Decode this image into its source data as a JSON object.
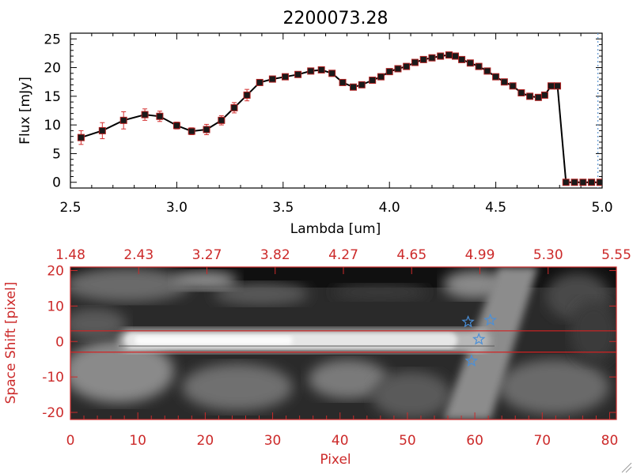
{
  "colors": {
    "axis_top": "#000000",
    "axis_bottom": "#cc2a2a",
    "error_bar": "#d43030",
    "marker_fill": "#1a1a1a",
    "marker_edge": "#b02020",
    "star": "#4a8fd8",
    "dotted_line": "#6aa0d8",
    "extract_line": "#d42222"
  },
  "chart_data": [
    {
      "type": "line",
      "title": "2200073.28",
      "xlabel": "Lambda [um]",
      "ylabel": "Flux [mJy]",
      "xlim": [
        2.5,
        5.0
      ],
      "ylim": [
        -1,
        26
      ],
      "x_ticks": [
        2.5,
        3.0,
        3.5,
        4.0,
        4.5,
        5.0
      ],
      "x_tick_labels": [
        "2.5",
        "3.0",
        "3.5",
        "4.0",
        "4.5",
        "5.0"
      ],
      "y_ticks": [
        0,
        5,
        10,
        15,
        20,
        25
      ],
      "y_tick_labels": [
        "0",
        "5",
        "10",
        "15",
        "20",
        "25"
      ],
      "series": [
        {
          "x": [
            2.55,
            2.65,
            2.75,
            2.85,
            2.92,
            3.0,
            3.07,
            3.14,
            3.21,
            3.27,
            3.33,
            3.39,
            3.45,
            3.51,
            3.57,
            3.63,
            3.68,
            3.73,
            3.78,
            3.83,
            3.87,
            3.92,
            3.96,
            4.0,
            4.04,
            4.08,
            4.12,
            4.16,
            4.2,
            4.24,
            4.28,
            4.31,
            4.34,
            4.38,
            4.42,
            4.46,
            4.5,
            4.54,
            4.58,
            4.62,
            4.66,
            4.7,
            4.73,
            4.76,
            4.79,
            4.83,
            4.87,
            4.91,
            4.95,
            4.99
          ],
          "y": [
            7.8,
            9.0,
            10.8,
            11.8,
            11.5,
            9.9,
            8.9,
            9.2,
            10.8,
            13.0,
            15.2,
            17.4,
            18.0,
            18.4,
            18.8,
            19.4,
            19.6,
            19.0,
            17.4,
            16.6,
            17.0,
            17.8,
            18.4,
            19.3,
            19.8,
            20.2,
            20.9,
            21.4,
            21.7,
            22.0,
            22.2,
            22.0,
            21.4,
            20.8,
            20.2,
            19.4,
            18.4,
            17.5,
            16.8,
            15.6,
            15.0,
            14.8,
            15.2,
            16.8,
            16.8,
            0.0,
            0.0,
            0.0,
            0.0,
            0.0
          ],
          "yerr": [
            1.2,
            1.4,
            1.5,
            1.0,
            0.9,
            0.6,
            0.6,
            0.9,
            0.8,
            0.9,
            1.0,
            0.5,
            0.4,
            0.4,
            0.3,
            0.3,
            0.3,
            0.3,
            0.3,
            0.3,
            0.3,
            0.3,
            0.3,
            0.3,
            0.3,
            0.3,
            0.3,
            0.3,
            0.3,
            0.3,
            0.5,
            0.4,
            0.4,
            0.3,
            0.3,
            0.3,
            0.4,
            0.3,
            0.3,
            0.3,
            0.4,
            0.4,
            0.4,
            0.4,
            0.4,
            0.3,
            0.3,
            0.3,
            0.3,
            0.3
          ]
        }
      ],
      "grid": false
    },
    {
      "type": "heatmap",
      "xlabel": "Pixel",
      "ylabel": "Space Shift [pixel]",
      "xlim": [
        0,
        81
      ],
      "ylim": [
        -22,
        21
      ],
      "x_ticks": [
        0,
        10,
        20,
        30,
        40,
        50,
        60,
        70,
        80
      ],
      "x_tick_labels": [
        "0",
        "10",
        "20",
        "30",
        "40",
        "50",
        "60",
        "70",
        "80"
      ],
      "y_ticks": [
        -20,
        -10,
        0,
        10,
        20
      ],
      "y_tick_labels": [
        "-20",
        "-10",
        "0",
        "10",
        "20"
      ],
      "top_tick_labels": [
        "1.48",
        "2.43",
        "3.27",
        "3.82",
        "4.27",
        "4.65",
        "4.99",
        "5.30",
        "5.55"
      ],
      "extraction_lines_y": [
        3,
        -3
      ],
      "star_markers": [
        {
          "x": 59.0,
          "y": 5.5
        },
        {
          "x": 62.3,
          "y": 6.0
        },
        {
          "x": 60.6,
          "y": 0.6
        },
        {
          "x": 59.5,
          "y": -5.5
        }
      ],
      "grid": false
    }
  ]
}
